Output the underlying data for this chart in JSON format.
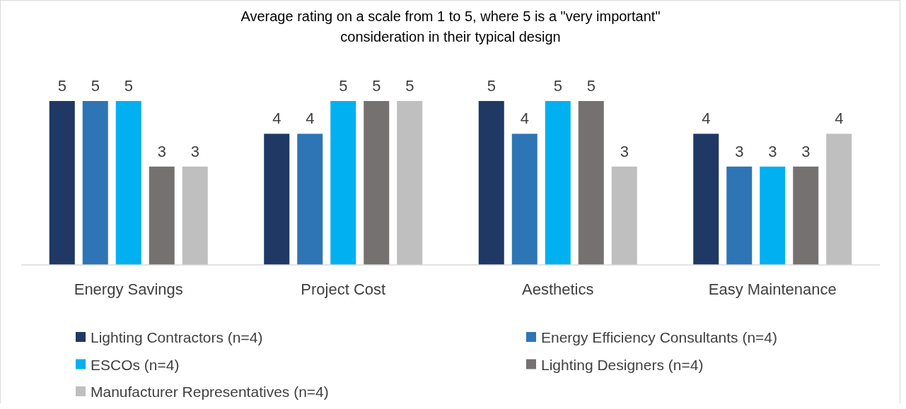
{
  "chart_data": {
    "type": "bar",
    "title": "Average rating on a scale from 1 to 5, where 5 is a \"very important\" consideration in their typical design",
    "categories": [
      "Energy Savings",
      "Project Cost",
      "Aesthetics",
      "Easy Maintenance"
    ],
    "series": [
      {
        "name": "Lighting Contractors (n=4)",
        "color": "#1f3864",
        "values": [
          5,
          4,
          5,
          4
        ]
      },
      {
        "name": "Energy Efficiency Consultants (n=4)",
        "color": "#2e75b6",
        "values": [
          5,
          4,
          4,
          3
        ]
      },
      {
        "name": "ESCOs (n=4)",
        "color": "#00b0f0",
        "values": [
          5,
          5,
          5,
          3
        ]
      },
      {
        "name": "Lighting Designers (n=4)",
        "color": "#767171",
        "values": [
          3,
          5,
          5,
          3
        ]
      },
      {
        "name": "Manufacturer Representatives (n=4)",
        "color": "#bfbfbf",
        "values": [
          3,
          5,
          3,
          4
        ]
      }
    ],
    "data_labels": true,
    "legend": "bottom",
    "tick_labels": "x"
  }
}
